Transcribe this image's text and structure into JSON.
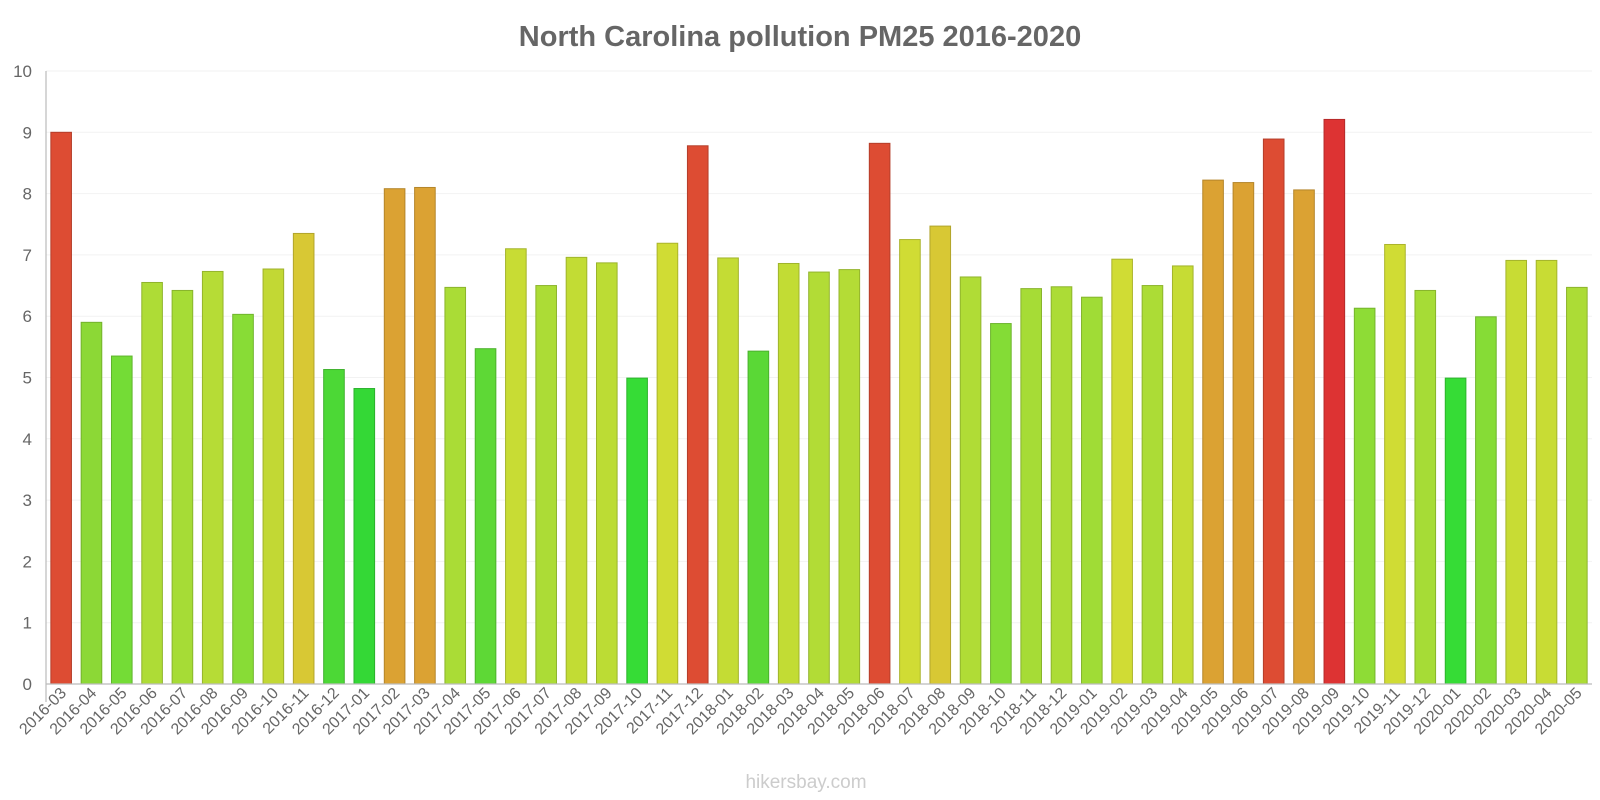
{
  "chart_data": {
    "type": "bar",
    "title": "North Carolina pollution PM25 2016-2020",
    "xlabel": "",
    "ylabel": "",
    "ylim": [
      0,
      10
    ],
    "yticks": [
      "0",
      "1",
      "2",
      "3",
      "4",
      "5",
      "6",
      "7",
      "8",
      "9",
      "10"
    ],
    "grid": true,
    "categories": [
      "2016-03",
      "2016-04",
      "2016-05",
      "2016-06",
      "2016-07",
      "2016-08",
      "2016-09",
      "2016-10",
      "2016-11",
      "2016-12",
      "2017-01",
      "2017-02",
      "2017-03",
      "2017-04",
      "2017-05",
      "2017-06",
      "2017-07",
      "2017-08",
      "2017-09",
      "2017-10",
      "2017-11",
      "2017-12",
      "2018-01",
      "2018-02",
      "2018-03",
      "2018-04",
      "2018-05",
      "2018-06",
      "2018-07",
      "2018-08",
      "2018-09",
      "2018-10",
      "2018-11",
      "2018-12",
      "2019-01",
      "2019-02",
      "2019-03",
      "2019-04",
      "2019-05",
      "2019-06",
      "2019-07",
      "2019-08",
      "2019-09",
      "2019-10",
      "2019-11",
      "2019-12",
      "2020-01",
      "2020-02",
      "2020-03",
      "2020-04",
      "2020-05"
    ],
    "values": [
      9.0,
      5.9,
      5.35,
      6.55,
      6.42,
      6.73,
      6.03,
      6.77,
      7.35,
      5.13,
      4.82,
      8.08,
      8.1,
      6.47,
      5.47,
      7.1,
      6.5,
      6.96,
      6.87,
      4.99,
      7.19,
      8.78,
      6.95,
      5.43,
      6.86,
      6.72,
      6.76,
      8.82,
      7.25,
      7.47,
      6.64,
      5.88,
      6.45,
      6.48,
      6.31,
      6.93,
      6.5,
      6.82,
      8.22,
      8.18,
      8.89,
      8.06,
      9.21,
      6.13,
      7.17,
      6.42,
      4.99,
      5.99,
      6.91,
      6.91,
      6.47
    ],
    "colors": [
      "#dd4c33",
      "#8cd836",
      "#74dc36",
      "#aedc36",
      "#a6dc36",
      "#b6dc36",
      "#88dc36",
      "#c2d834",
      "#d8c834",
      "#4cd836",
      "#34d836",
      "#dba233",
      "#dba233",
      "#aadc36",
      "#5ed836",
      "#c8dc34",
      "#acdc36",
      "#c2dc34",
      "#bcdc34",
      "#36dc36",
      "#d0dc34",
      "#dd4c33",
      "#c4dc34",
      "#5ad836",
      "#c2dc34",
      "#b2dc36",
      "#b4dc36",
      "#dd4c33",
      "#d0dc34",
      "#d8c834",
      "#b0dc36",
      "#84dc36",
      "#a6dc36",
      "#acdc36",
      "#a0dc36",
      "#d0dc34",
      "#acdc36",
      "#c6dc34",
      "#dba233",
      "#dba233",
      "#dd4c33",
      "#dba233",
      "#dd3333",
      "#8edc36",
      "#d0dc34",
      "#a6dc36",
      "#36dc36",
      "#86dc36",
      "#c8dc34",
      "#c8dc34",
      "#acdc36"
    ],
    "watermark": "hikersbay.com"
  }
}
